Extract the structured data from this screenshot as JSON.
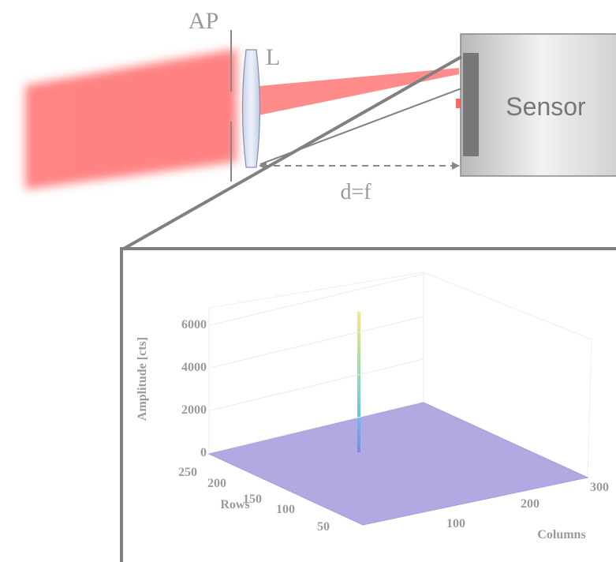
{
  "labels": {
    "aperture": "AP",
    "lens": "L",
    "sensor": "Sensor",
    "distance": "d=f"
  },
  "plot": {
    "z_label": "Amplitude [cts]",
    "x_label": "Columns",
    "y_label": "Rows",
    "z_ticks": [
      "0",
      "2000",
      "4000",
      "6000"
    ],
    "x_ticks": [
      "100",
      "200",
      "300"
    ],
    "y_ticks": [
      "250",
      "200",
      "150",
      "100",
      "50"
    ]
  }
}
